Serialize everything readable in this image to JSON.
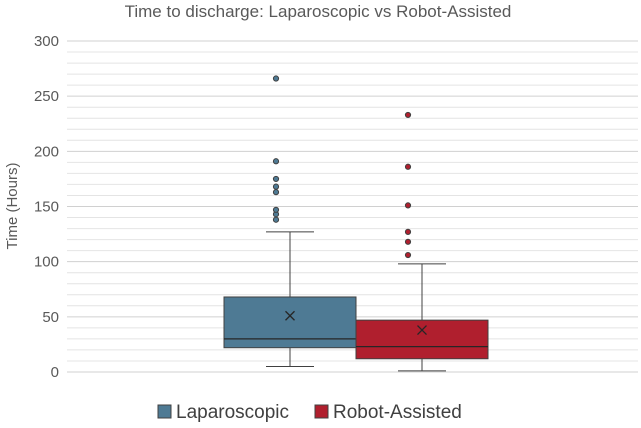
{
  "chart_data": {
    "type": "box",
    "title": "Time to discharge: Laparoscopic vs Robot-Assisted",
    "xlabel": "",
    "ylabel": "Time (Hours)",
    "ylim": [
      0,
      300
    ],
    "major_ticks": [
      0,
      50,
      100,
      150,
      200,
      250,
      300
    ],
    "minor_tick_step": 10,
    "grid": true,
    "legend": "bottom",
    "series": [
      {
        "name": "Laparoscopic",
        "color": "#4e7a94",
        "whisker_low": 5,
        "q1": 22,
        "median": 30,
        "q3": 68,
        "whisker_high": 127,
        "mean": 51,
        "outliers": [
          138,
          143,
          147,
          163,
          168,
          175,
          191,
          266
        ]
      },
      {
        "name": "Robot-Assisted",
        "color": "#b01f2e",
        "whisker_low": 1,
        "q1": 12,
        "median": 23,
        "q3": 47,
        "whisker_high": 98,
        "mean": 38,
        "outliers": [
          106,
          118,
          127,
          151,
          186,
          233
        ]
      }
    ]
  }
}
